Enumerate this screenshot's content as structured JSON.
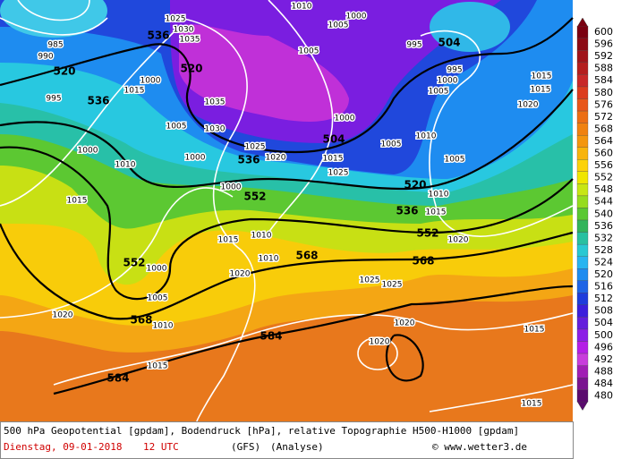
{
  "map": {
    "geopotential_labels": [
      536,
      520,
      536,
      520,
      536,
      504,
      504,
      520,
      536,
      552,
      552,
      568,
      568,
      552,
      568,
      584,
      584
    ],
    "pressure_labels": [
      1025,
      1030,
      1035,
      985,
      990,
      995,
      1015,
      1000,
      1035,
      1030,
      1005,
      1000,
      1000,
      1010,
      1020,
      1025,
      1010,
      1000,
      1005,
      1005,
      1000,
      1015,
      1025,
      1005,
      1010,
      995,
      995,
      1000,
      1005,
      1015,
      1015,
      1020,
      1005,
      1010,
      1015,
      1020,
      1000,
      1015,
      1010,
      1010,
      1025,
      1025,
      1020,
      1000,
      1005,
      1015,
      1020,
      1010,
      1015,
      1020,
      1020,
      1015,
      1015
    ]
  },
  "colorbar": {
    "values": [
      600,
      596,
      592,
      588,
      584,
      580,
      576,
      572,
      568,
      564,
      560,
      556,
      552,
      548,
      544,
      540,
      536,
      532,
      528,
      524,
      520,
      516,
      512,
      508,
      504,
      500,
      496,
      492,
      488,
      484,
      480
    ],
    "colors": [
      "#7a0010",
      "#8c0a14",
      "#a0141a",
      "#b41e1e",
      "#c82828",
      "#dc3c1e",
      "#e8561a",
      "#ec6e14",
      "#f08210",
      "#f4960e",
      "#f8b40c",
      "#fcd20a",
      "#f0e600",
      "#c8e614",
      "#96dc1e",
      "#5ac832",
      "#32b45a",
      "#28c0a0",
      "#28c8d2",
      "#28b4f0",
      "#1e8cf0",
      "#1e64e6",
      "#1e3cdc",
      "#3c1edc",
      "#641edc",
      "#8c1ee6",
      "#b41ee6",
      "#c83cdc",
      "#a01eb4",
      "#7a1490",
      "#5a0a6e"
    ]
  },
  "footer": {
    "line1": "500 hPa Geopotential [gpdam], Bodendruck [hPa], relative Topographie H500-H1000 [gpdam]",
    "date": "Dienstag, 09-01-2018",
    "time": "12 UTC",
    "model": "(GFS)",
    "run": "(Analyse)",
    "credit": "© www.wetter3.de"
  }
}
